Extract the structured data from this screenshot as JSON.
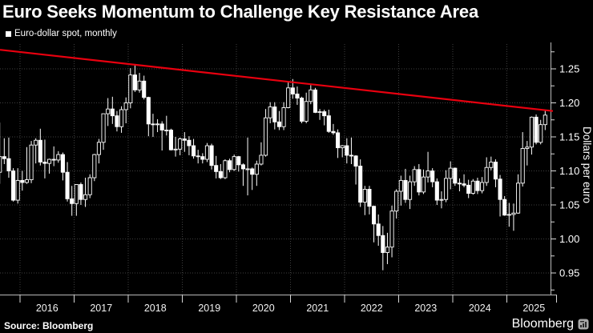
{
  "header": {
    "title": "Euro Seeks Momentum to Challenge Key Resistance Area",
    "legend_label": "Euro-dollar spot, monthly"
  },
  "footer": {
    "source": "Source: Bloomberg",
    "brand": "Bloomberg"
  },
  "colors": {
    "background": "#000000",
    "candle": "#ffffff",
    "resistance_line": "#e8000f",
    "gridline": "#3f3f3f",
    "axis": "#b9b9b9"
  },
  "chart_data": {
    "type": "candlestick",
    "title": "Euro Seeks Momentum to Challenge Key Resistance Area",
    "series_name": "Euro-dollar spot, monthly",
    "frequency": "monthly",
    "start_period": "2015-08",
    "end_period": "2025-09",
    "ylabel": "Dollars per euro",
    "ylim": [
      0.918,
      1.287
    ],
    "grid": true,
    "y_ticks": [
      1.25,
      1.2,
      1.15,
      1.1,
      1.05,
      1.0,
      0.95
    ],
    "y_tick_labels": [
      "1.25",
      "1.20",
      "1.15",
      "1.10",
      "1.05",
      "1.00",
      "0.95"
    ],
    "y_minor_ticks": [
      1.275,
      1.225,
      1.175,
      1.125,
      1.075,
      1.025,
      0.975,
      0.925
    ],
    "x_year_labels": [
      "2016",
      "2017",
      "2018",
      "2019",
      "2020",
      "2021",
      "2022",
      "2023",
      "2024",
      "2025"
    ],
    "resistance_trendline": {
      "description": "key resistance area",
      "start_value": 1.278,
      "end_value": 1.188,
      "color": "#e8000f"
    },
    "ohlc_format": [
      "open",
      "high",
      "low",
      "close"
    ],
    "ohlc": [
      [
        1.098,
        1.171,
        1.081,
        1.121
      ],
      [
        1.121,
        1.148,
        1.11,
        1.118
      ],
      [
        1.118,
        1.149,
        1.09,
        1.1
      ],
      [
        1.1,
        1.104,
        1.055,
        1.057
      ],
      [
        1.057,
        1.104,
        1.052,
        1.086
      ],
      [
        1.086,
        1.1,
        1.071,
        1.083
      ],
      [
        1.083,
        1.135,
        1.081,
        1.087
      ],
      [
        1.087,
        1.144,
        1.082,
        1.138
      ],
      [
        1.138,
        1.148,
        1.111,
        1.145
      ],
      [
        1.145,
        1.162,
        1.108,
        1.113
      ],
      [
        1.113,
        1.146,
        1.089,
        1.111
      ],
      [
        1.111,
        1.118,
        1.096,
        1.117
      ],
      [
        1.117,
        1.136,
        1.107,
        1.116
      ],
      [
        1.116,
        1.129,
        1.112,
        1.124
      ],
      [
        1.124,
        1.127,
        1.086,
        1.098
      ],
      [
        1.098,
        1.113,
        1.055,
        1.059
      ],
      [
        1.059,
        1.078,
        1.034,
        1.052
      ],
      [
        1.052,
        1.08,
        1.034,
        1.08
      ],
      [
        1.08,
        1.083,
        1.05,
        1.058
      ],
      [
        1.058,
        1.09,
        1.047,
        1.065
      ],
      [
        1.065,
        1.095,
        1.06,
        1.09
      ],
      [
        1.09,
        1.125,
        1.085,
        1.124
      ],
      [
        1.124,
        1.147,
        1.111,
        1.142
      ],
      [
        1.142,
        1.184,
        1.131,
        1.184
      ],
      [
        1.184,
        1.207,
        1.166,
        1.191
      ],
      [
        1.191,
        1.209,
        1.169,
        1.181
      ],
      [
        1.181,
        1.188,
        1.158,
        1.165
      ],
      [
        1.165,
        1.195,
        1.156,
        1.19
      ],
      [
        1.19,
        1.208,
        1.17,
        1.2
      ],
      [
        1.2,
        1.251,
        1.192,
        1.241
      ],
      [
        1.241,
        1.255,
        1.216,
        1.219
      ],
      [
        1.219,
        1.244,
        1.215,
        1.232
      ],
      [
        1.232,
        1.24,
        1.205,
        1.208
      ],
      [
        1.208,
        1.209,
        1.151,
        1.169
      ],
      [
        1.169,
        1.184,
        1.15,
        1.168
      ],
      [
        1.168,
        1.176,
        1.157,
        1.169
      ],
      [
        1.169,
        1.173,
        1.13,
        1.16
      ],
      [
        1.16,
        1.181,
        1.152,
        1.16
      ],
      [
        1.16,
        1.162,
        1.13,
        1.131
      ],
      [
        1.131,
        1.15,
        1.121,
        1.132
      ],
      [
        1.132,
        1.149,
        1.123,
        1.147
      ],
      [
        1.147,
        1.157,
        1.128,
        1.145
      ],
      [
        1.145,
        1.151,
        1.123,
        1.137
      ],
      [
        1.137,
        1.147,
        1.118,
        1.122
      ],
      [
        1.122,
        1.131,
        1.111,
        1.121
      ],
      [
        1.121,
        1.126,
        1.111,
        1.117
      ],
      [
        1.117,
        1.141,
        1.113,
        1.137
      ],
      [
        1.137,
        1.14,
        1.102,
        1.108
      ],
      [
        1.108,
        1.122,
        1.089,
        1.099
      ],
      [
        1.099,
        1.11,
        1.088,
        1.09
      ],
      [
        1.09,
        1.117,
        1.088,
        1.115
      ],
      [
        1.115,
        1.118,
        1.098,
        1.102
      ],
      [
        1.102,
        1.124,
        1.1,
        1.121
      ],
      [
        1.121,
        1.122,
        1.099,
        1.109
      ],
      [
        1.109,
        1.111,
        1.078,
        1.103
      ],
      [
        1.103,
        1.149,
        1.064,
        1.103
      ],
      [
        1.103,
        1.105,
        1.072,
        1.095
      ],
      [
        1.095,
        1.115,
        1.078,
        1.11
      ],
      [
        1.11,
        1.142,
        1.108,
        1.123
      ],
      [
        1.123,
        1.191,
        1.121,
        1.178
      ],
      [
        1.178,
        1.201,
        1.17,
        1.194
      ],
      [
        1.194,
        1.201,
        1.161,
        1.172
      ],
      [
        1.172,
        1.188,
        1.16,
        1.165
      ],
      [
        1.165,
        1.201,
        1.16,
        1.193
      ],
      [
        1.193,
        1.231,
        1.192,
        1.222
      ],
      [
        1.222,
        1.235,
        1.206,
        1.213
      ],
      [
        1.213,
        1.224,
        1.197,
        1.207
      ],
      [
        1.207,
        1.209,
        1.17,
        1.173
      ],
      [
        1.173,
        1.215,
        1.17,
        1.202
      ],
      [
        1.202,
        1.226,
        1.198,
        1.219
      ],
      [
        1.219,
        1.222,
        1.185,
        1.186
      ],
      [
        1.186,
        1.191,
        1.175,
        1.187
      ],
      [
        1.187,
        1.19,
        1.167,
        1.181
      ],
      [
        1.181,
        1.19,
        1.156,
        1.158
      ],
      [
        1.158,
        1.169,
        1.153,
        1.156
      ],
      [
        1.156,
        1.161,
        1.119,
        1.134
      ],
      [
        1.134,
        1.138,
        1.12,
        1.137
      ],
      [
        1.137,
        1.148,
        1.111,
        1.123
      ],
      [
        1.123,
        1.149,
        1.11,
        1.122
      ],
      [
        1.122,
        1.123,
        1.08,
        1.107
      ],
      [
        1.107,
        1.117,
        1.047,
        1.054
      ],
      [
        1.054,
        1.078,
        1.035,
        1.073
      ],
      [
        1.073,
        1.078,
        1.036,
        1.048
      ],
      [
        1.048,
        1.049,
        0.995,
        1.022
      ],
      [
        1.022,
        1.036,
        0.99,
        1.005
      ],
      [
        1.005,
        1.019,
        0.954,
        0.98
      ],
      [
        0.98,
        1.009,
        0.963,
        0.988
      ],
      [
        0.988,
        1.049,
        0.973,
        1.041
      ],
      [
        1.041,
        1.073,
        1.03,
        1.07
      ],
      [
        1.07,
        1.093,
        1.049,
        1.086
      ],
      [
        1.086,
        1.103,
        1.053,
        1.058
      ],
      [
        1.058,
        1.093,
        1.044,
        1.084
      ],
      [
        1.084,
        1.107,
        1.078,
        1.102
      ],
      [
        1.102,
        1.11,
        1.064,
        1.069
      ],
      [
        1.069,
        1.102,
        1.066,
        1.091
      ],
      [
        1.091,
        1.128,
        1.083,
        1.1
      ],
      [
        1.1,
        1.104,
        1.076,
        1.084
      ],
      [
        1.084,
        1.089,
        1.05,
        1.057
      ],
      [
        1.057,
        1.07,
        1.045,
        1.058
      ],
      [
        1.058,
        1.101,
        1.054,
        1.089
      ],
      [
        1.089,
        1.114,
        1.073,
        1.104
      ],
      [
        1.104,
        1.105,
        1.078,
        1.082
      ],
      [
        1.082,
        1.089,
        1.07,
        1.081
      ],
      [
        1.081,
        1.095,
        1.076,
        1.079
      ],
      [
        1.079,
        1.087,
        1.06,
        1.067
      ],
      [
        1.067,
        1.088,
        1.065,
        1.085
      ],
      [
        1.085,
        1.09,
        1.066,
        1.071
      ],
      [
        1.071,
        1.091,
        1.067,
        1.083
      ],
      [
        1.083,
        1.12,
        1.078,
        1.105
      ],
      [
        1.105,
        1.121,
        1.101,
        1.113
      ],
      [
        1.113,
        1.117,
        1.076,
        1.088
      ],
      [
        1.088,
        1.094,
        1.033,
        1.058
      ],
      [
        1.058,
        1.063,
        1.034,
        1.035
      ],
      [
        1.035,
        1.053,
        1.018,
        1.036
      ],
      [
        1.036,
        1.052,
        1.012,
        1.038
      ],
      [
        1.038,
        1.095,
        1.037,
        1.082
      ],
      [
        1.082,
        1.157,
        1.077,
        1.133
      ],
      [
        1.133,
        1.144,
        1.108,
        1.135
      ],
      [
        1.135,
        1.18,
        1.124,
        1.179
      ],
      [
        1.179,
        1.183,
        1.139,
        1.142
      ],
      [
        1.142,
        1.175,
        1.139,
        1.168
      ],
      [
        1.168,
        1.19,
        1.16,
        1.182
      ]
    ]
  }
}
